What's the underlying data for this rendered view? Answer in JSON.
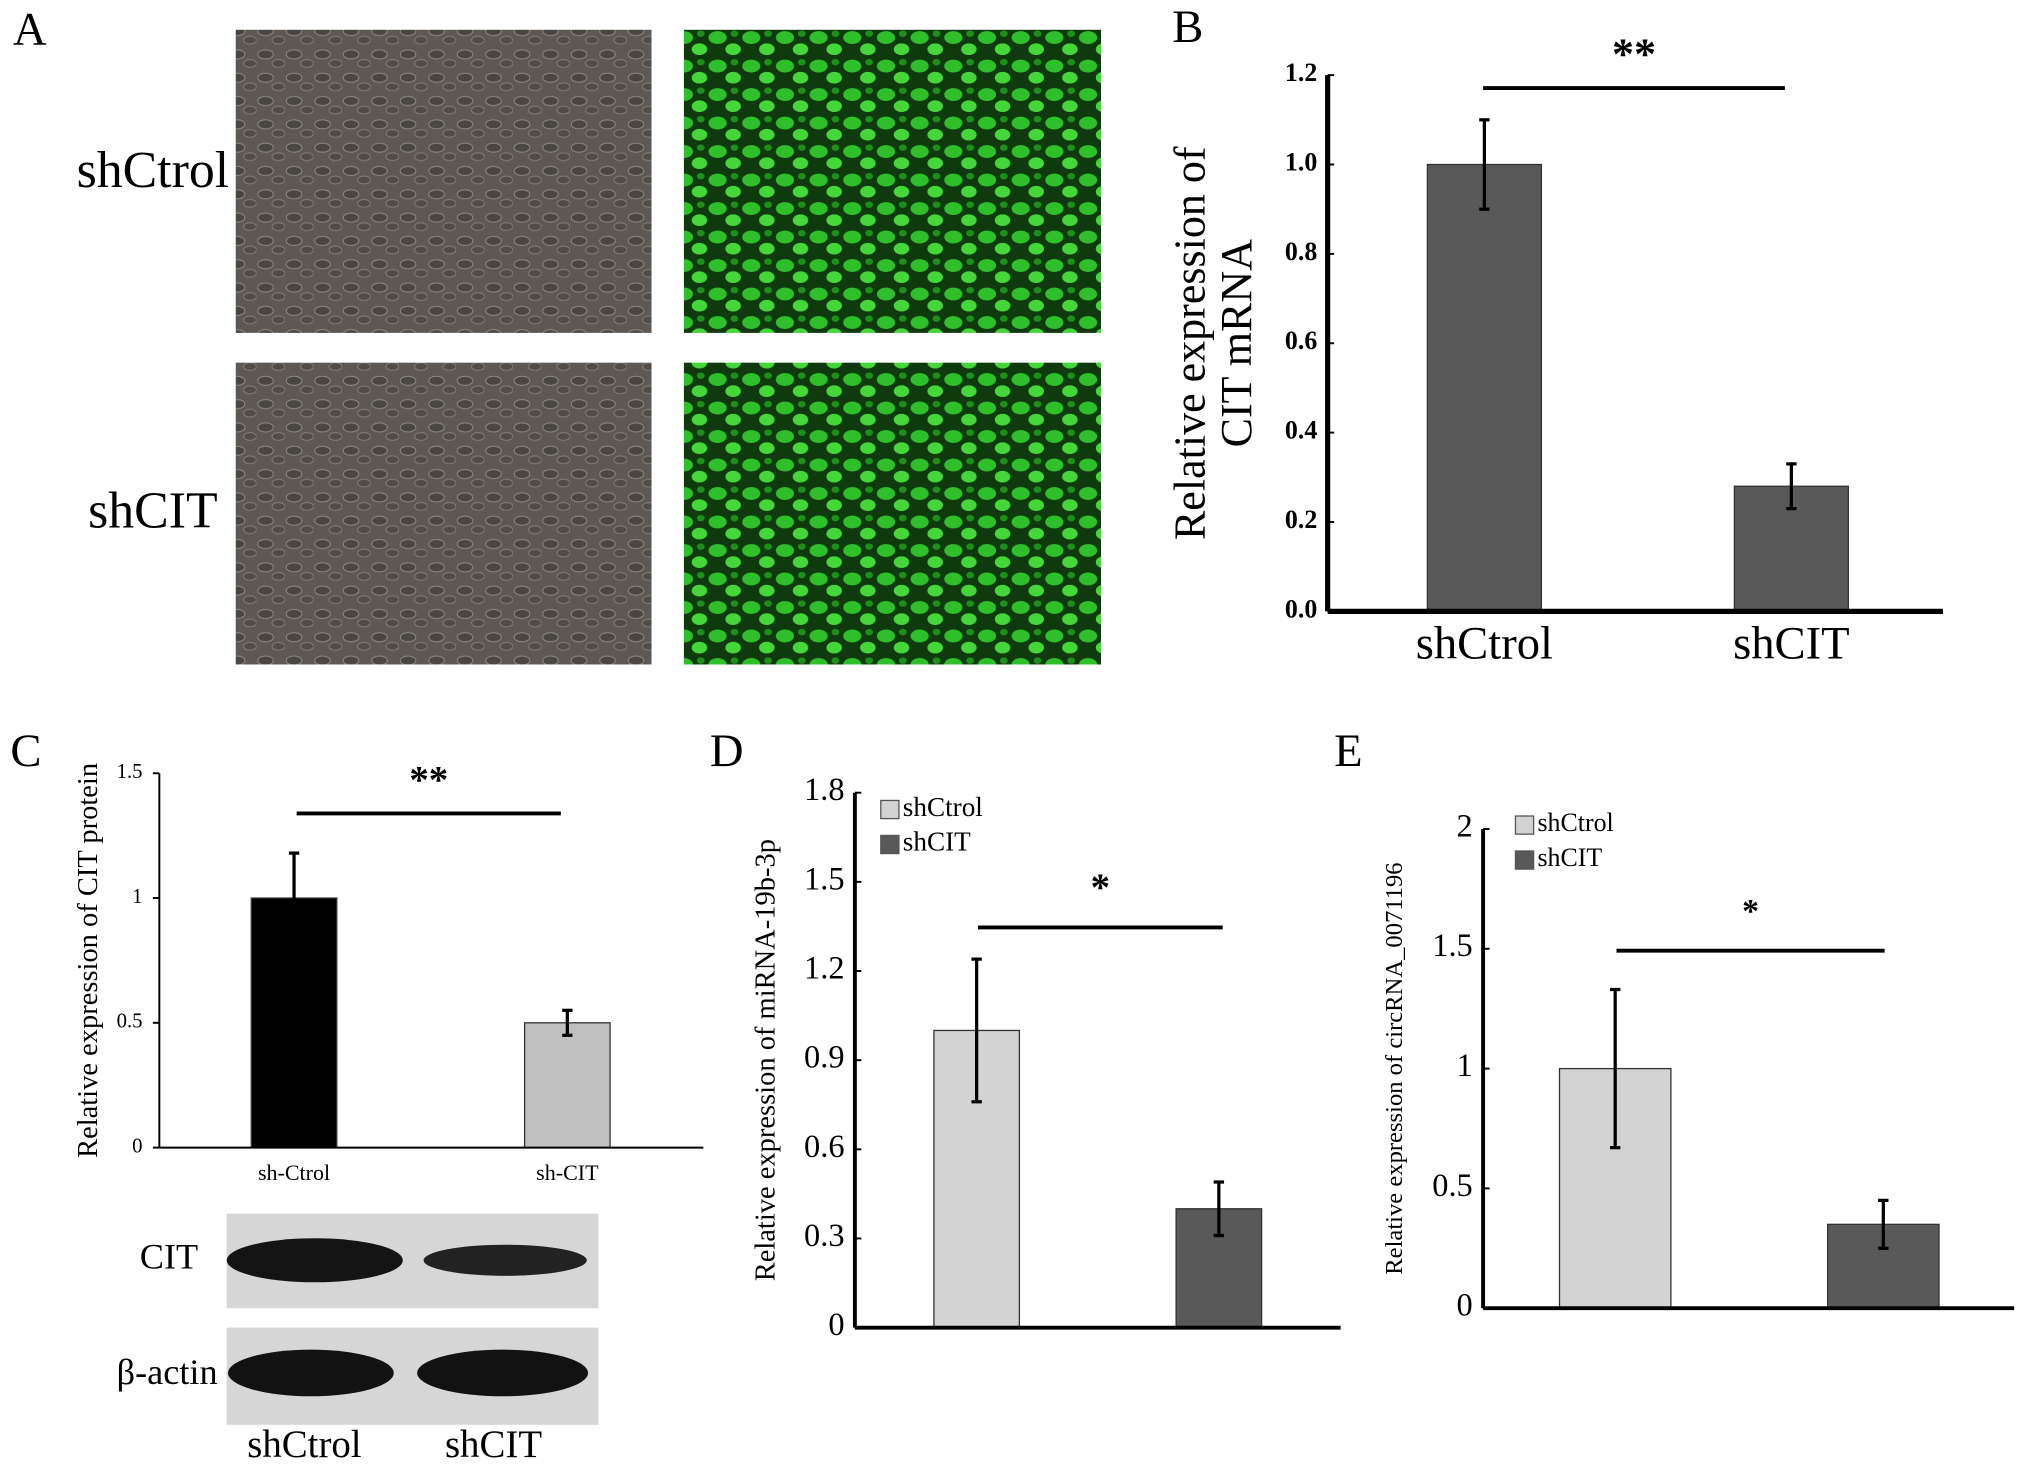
{
  "panel_a": {
    "label": "A",
    "rows": [
      "shCtrol",
      "shCIT"
    ]
  },
  "chart_data": [
    {
      "type": "bar",
      "label": "B",
      "ylabel": [
        "Relative expression of",
        "CIT mRNA"
      ],
      "categories": [
        "shCtrol",
        "shCIT"
      ],
      "values": [
        1.0,
        0.28
      ],
      "errors": [
        0.1,
        0.05
      ],
      "color": "#595959",
      "ylim": [
        0,
        1.2
      ],
      "yticks": [
        {
          "value": 0,
          "label": "0.0"
        },
        0.2,
        0.4,
        0.6,
        0.8,
        {
          "value": 1,
          "label": "1.0"
        },
        1.2
      ],
      "significance": "**"
    },
    {
      "type": "bar",
      "label": "C",
      "ylabel": "Relative expression  of CIT protein",
      "categories": [
        "sh-Ctrol",
        "sh-CIT"
      ],
      "values": [
        1.0,
        0.5
      ],
      "errors": [
        0.18,
        0.05
      ],
      "colors": [
        "#000000",
        "#c0c0c0"
      ],
      "ylim": [
        0,
        1.5
      ],
      "yticks": [
        0,
        0.5,
        1,
        1.5
      ],
      "significance": "**",
      "blot": {
        "rows": [
          "CIT",
          "β-actin"
        ],
        "lanes": [
          "shCtrol",
          "shCIT"
        ]
      }
    },
    {
      "type": "bar",
      "label": "D",
      "ylabel": "Relative expression of miRNA-19b-3p",
      "series": [
        {
          "name": "shCtrol",
          "color": "#d3d3d3",
          "values": [
            1.0
          ],
          "errors": [
            0.24
          ]
        },
        {
          "name": "shCIT",
          "color": "#595959",
          "values": [
            0.4
          ],
          "errors": [
            0.09
          ]
        }
      ],
      "ylim": [
        0,
        1.8
      ],
      "yticks": [
        0,
        0.3,
        0.6,
        0.9,
        1.2,
        1.5,
        1.8
      ],
      "significance": "*"
    },
    {
      "type": "bar",
      "label": "E",
      "ylabel": "Relative expression of circRNA_0071196",
      "series": [
        {
          "name": "shCtrol",
          "color": "#d3d3d3",
          "values": [
            1.0
          ],
          "errors": [
            0.33
          ]
        },
        {
          "name": "shCIT",
          "color": "#595959",
          "values": [
            0.35
          ],
          "errors": [
            0.1
          ]
        }
      ],
      "ylim": [
        0,
        2
      ],
      "yticks": [
        0,
        0.5,
        1,
        1.5,
        2
      ],
      "significance": "*"
    }
  ]
}
